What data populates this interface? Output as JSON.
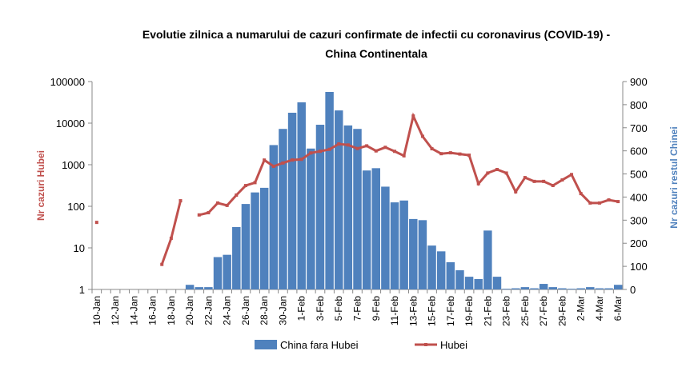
{
  "chart_data": {
    "type": "bar-line",
    "title": [
      "Evolutie zilnica a numarului de cazuri confirmate de infectii cu coronavirus (COVID-19) -",
      "China Continentala"
    ],
    "y_label": "Nr cazuri Hubei",
    "y2_label": "Nr cazuri restul Chinei",
    "categories": [
      "10-Jan",
      null,
      "12-Jan",
      null,
      "14-Jan",
      null,
      "16-Jan",
      null,
      "18-Jan",
      null,
      "20-Jan",
      null,
      "22-Jan",
      null,
      "24-Jan",
      null,
      "26-Jan",
      null,
      "28-Jan",
      null,
      "30-Jan",
      null,
      "1-Feb",
      null,
      "3-Feb",
      null,
      "5-Feb",
      null,
      "7-Feb",
      null,
      "9-Feb",
      null,
      "11-Feb",
      null,
      "13-Feb",
      null,
      "15-Feb",
      null,
      "17-Feb",
      null,
      "19-Feb",
      null,
      "21-Feb",
      null,
      "23-Feb",
      null,
      "25-Feb",
      null,
      "27-Feb",
      null,
      "29-Feb",
      null,
      "2-Mar",
      null,
      "4-Mar",
      null,
      "6-Mar"
    ],
    "series": [
      {
        "name": "China fara Hubei",
        "type": "bar",
        "axis": "y2",
        "color": "#4f81bd",
        "values": [
          0,
          0,
          0,
          0,
          0,
          0,
          0,
          0,
          0,
          0,
          20,
          10,
          10,
          140,
          150,
          270,
          370,
          420,
          440,
          625,
          695,
          765,
          810,
          610,
          713,
          855,
          775,
          710,
          695,
          515,
          525,
          445,
          377,
          385,
          305,
          300,
          190,
          165,
          118,
          83,
          55,
          45,
          255,
          55,
          3,
          5,
          10,
          5,
          24,
          10,
          5,
          3,
          5,
          10,
          5,
          5,
          20
        ]
      },
      {
        "name": "Hubei",
        "type": "line",
        "axis": "y",
        "color": "#c0504d",
        "values": [
          41,
          null,
          null,
          null,
          null,
          null,
          null,
          4,
          17,
          136,
          null,
          62,
          70,
          120,
          105,
          186,
          315,
          371,
          1291,
          915,
          1100,
          1300,
          1347,
          1921,
          2103,
          2345,
          3156,
          2987,
          2447,
          2841,
          2147,
          2618,
          2097,
          1638,
          14840,
          4823,
          2420,
          1843,
          1933,
          1807,
          1693,
          349,
          631,
          766,
          630,
          223,
          490,
          397,
          397,
          316,
          430,
          580,
          202,
          120,
          120,
          142,
          130
        ]
      }
    ],
    "ylim": [
      1,
      100000
    ],
    "yticks": [
      1,
      10,
      100,
      1000,
      10000,
      100000
    ],
    "yscale": "log",
    "y2lim": [
      0,
      900
    ],
    "y2ticks": [
      0,
      100,
      200,
      300,
      400,
      500,
      600,
      700,
      800,
      900
    ],
    "grid": false,
    "legend": "bottom"
  }
}
